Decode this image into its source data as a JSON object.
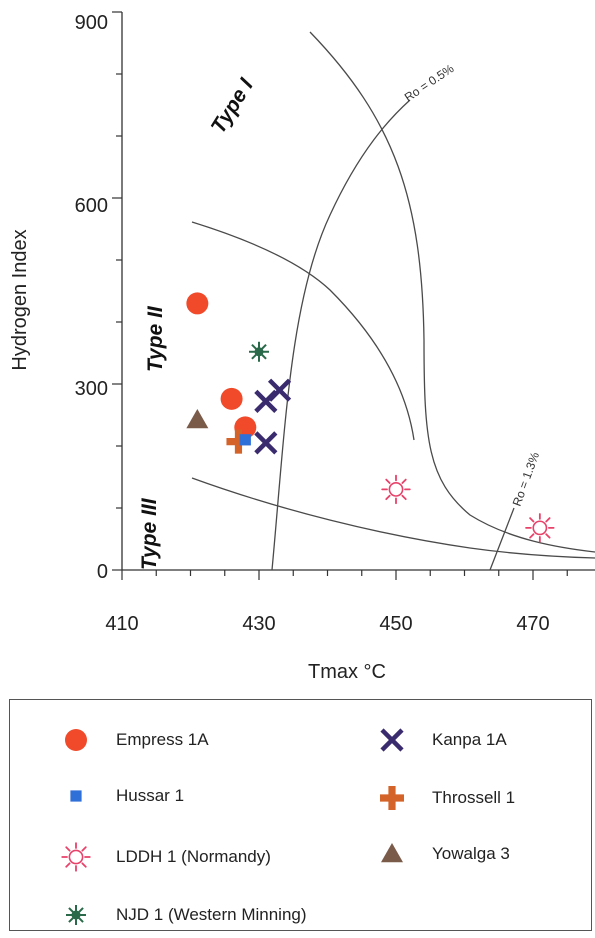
{
  "chart_data": {
    "type": "scatter",
    "xlabel": "Tmax °C",
    "ylabel": "Hydrogen Index",
    "xlim": [
      405,
      480
    ],
    "ylim": [
      0,
      900
    ],
    "x_ticks": [
      "410",
      "430",
      "450",
      "470"
    ],
    "y_ticks": [
      "0",
      "300",
      "600",
      "900"
    ],
    "series": [
      {
        "name": "Empress 1A",
        "marker": "filled-circle",
        "color": "#f04a2a",
        "points": [
          {
            "x": 421,
            "y": 430
          },
          {
            "x": 426,
            "y": 276
          },
          {
            "x": 428,
            "y": 230
          }
        ]
      },
      {
        "name": "Hussar 1",
        "marker": "filled-square",
        "color": "#2f6fd8",
        "points": [
          {
            "x": 428,
            "y": 210
          }
        ]
      },
      {
        "name": "LDDH 1 (Normandy)",
        "marker": "open-sunburst",
        "color": "#e8416a",
        "points": [
          {
            "x": 450,
            "y": 130
          },
          {
            "x": 471,
            "y": 68
          }
        ]
      },
      {
        "name": "NJD 1 (Western Minning)",
        "marker": "asterisk",
        "color": "#2a6a4a",
        "points": [
          {
            "x": 430,
            "y": 352
          }
        ]
      },
      {
        "name": "Kanpa 1A",
        "marker": "x-cross",
        "color": "#3a2b6e",
        "points": [
          {
            "x": 431,
            "y": 272
          },
          {
            "x": 433,
            "y": 290
          },
          {
            "x": 431,
            "y": 205
          }
        ]
      },
      {
        "name": "Throssell 1",
        "marker": "plus",
        "color": "#d4632a",
        "points": [
          {
            "x": 427,
            "y": 207
          }
        ]
      },
      {
        "name": "Yowalga 3",
        "marker": "triangle",
        "color": "#7a5a48",
        "points": [
          {
            "x": 421,
            "y": 242
          }
        ]
      }
    ],
    "annotations": [
      "Type I",
      "Type II",
      "Type III",
      "Ro = 0.5%",
      "Ro = 1.3%"
    ],
    "legend_position": "bottom",
    "grid": false
  },
  "legend": {
    "items": [
      {
        "label": "Empress 1A"
      },
      {
        "label": "Hussar 1"
      },
      {
        "label": "LDDH 1 (Normandy)"
      },
      {
        "label": "NJD 1 (Western Minning)"
      },
      {
        "label": "Kanpa 1A"
      },
      {
        "label": "Throssell 1"
      },
      {
        "label": "Yowalga 3"
      }
    ]
  },
  "colors": {
    "empress": "#f04a2a",
    "hussar": "#2f6fd8",
    "lddh": "#e8416a",
    "njd": "#2a6a4a",
    "kanpa": "#3a2b6e",
    "throssell": "#d4632a",
    "yowalga": "#7a5a48",
    "curves": "#4a4a4a"
  }
}
